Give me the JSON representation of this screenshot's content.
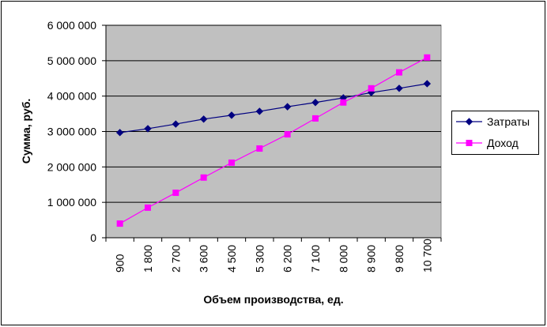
{
  "chart_data": {
    "type": "line",
    "x_label": "Объем производства, ед.",
    "y_label": "Сумма, руб.",
    "categories": [
      "900",
      "1 800",
      "2 700",
      "3 600",
      "4 500",
      "5 300",
      "6 200",
      "7 100",
      "8 000",
      "8 900",
      "9 800",
      "10 700"
    ],
    "series": [
      {
        "name": "Затраты",
        "color": "#000080",
        "marker": "diamond",
        "values": [
          2970000,
          3080000,
          3210000,
          3350000,
          3460000,
          3570000,
          3700000,
          3820000,
          3950000,
          4100000,
          4220000,
          4350000
        ]
      },
      {
        "name": "Доход",
        "color": "#ff00ff",
        "marker": "square",
        "values": [
          400000,
          850000,
          1270000,
          1700000,
          2120000,
          2520000,
          2920000,
          3370000,
          3820000,
          4220000,
          4670000,
          5090000
        ]
      }
    ],
    "ylim": [
      0,
      6000000
    ],
    "yticks": [
      0,
      {
        "value": 1000000,
        "label": "1 000 000"
      },
      {
        "value": 2000000,
        "label": "2 000 000"
      },
      {
        "value": 3000000,
        "label": "3 000 000"
      },
      {
        "value": 4000000,
        "label": "4 000 000"
      },
      {
        "value": 5000000,
        "label": "5 000 000"
      },
      {
        "value": 6000000,
        "label": "6 000 000"
      }
    ],
    "grid": true,
    "legend": "right",
    "plot_background": "#c0c0c0"
  }
}
